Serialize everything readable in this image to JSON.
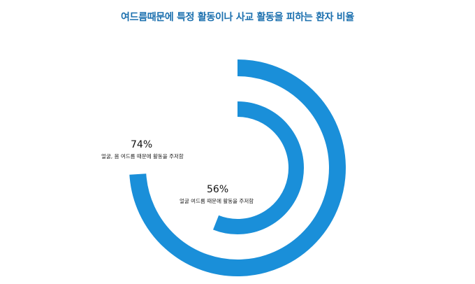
{
  "chart_data": {
    "type": "radial-bar",
    "title": "여드름때문에 특정 활동이나 사교 활동을 피하는 환자 비율",
    "color": "#1a8fd9",
    "series": [
      {
        "value": 74,
        "label": "74%",
        "description": "얼굴, 몸 여드름 때문에 활동을 주저함"
      },
      {
        "value": 56,
        "label": "56%",
        "description": "얼굴 여드름 때문에 활동을 주저함"
      }
    ]
  }
}
